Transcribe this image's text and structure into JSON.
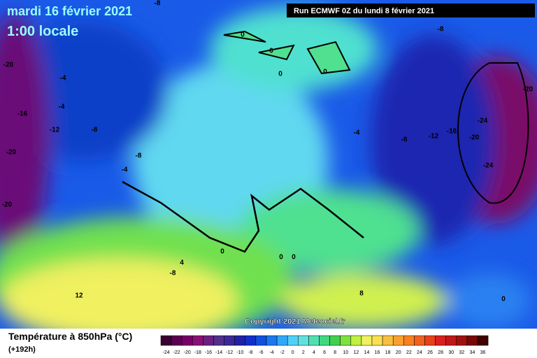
{
  "header": {
    "date": "mardi 16 février 2021",
    "time": "1:00 locale",
    "run": "Run ECMWF 0Z du lundi 8 février 2021"
  },
  "map": {
    "contour_labels": [
      -8,
      0,
      0,
      0,
      0,
      -8,
      -20,
      -4,
      -4,
      -16,
      -12,
      -8,
      -20,
      -24,
      -16,
      -12,
      -8,
      -4,
      -20,
      -24,
      -20,
      -8,
      -4,
      -20,
      0,
      0,
      0,
      4,
      -8,
      12,
      8,
      0
    ],
    "copyright": "Copyright 2021 Meteociel.fr"
  },
  "legend": {
    "title": "Température à 850hPa (°C)",
    "subtitle": "(+192h)",
    "ticks": [
      -24,
      -22,
      -20,
      -18,
      -16,
      -14,
      -12,
      -10,
      -8,
      -6,
      -4,
      -2,
      0,
      2,
      4,
      6,
      8,
      10,
      12,
      14,
      16,
      18,
      20,
      22,
      24,
      26,
      28,
      30,
      32,
      34,
      36
    ],
    "colors": [
      "#3a0030",
      "#5a0050",
      "#780068",
      "#8a1078",
      "#6a2080",
      "#50308a",
      "#3a2898",
      "#2020a8",
      "#1030c8",
      "#1050e0",
      "#1a78f0",
      "#30a8f8",
      "#50d0f8",
      "#60e0e0",
      "#50e0b0",
      "#40d880",
      "#40d050",
      "#80e040",
      "#c0f040",
      "#f0f060",
      "#f8e050",
      "#f8c040",
      "#f8a030",
      "#f88020",
      "#f06020",
      "#e84018",
      "#d82020",
      "#c01818",
      "#a01010",
      "#780808",
      "#400000"
    ]
  }
}
